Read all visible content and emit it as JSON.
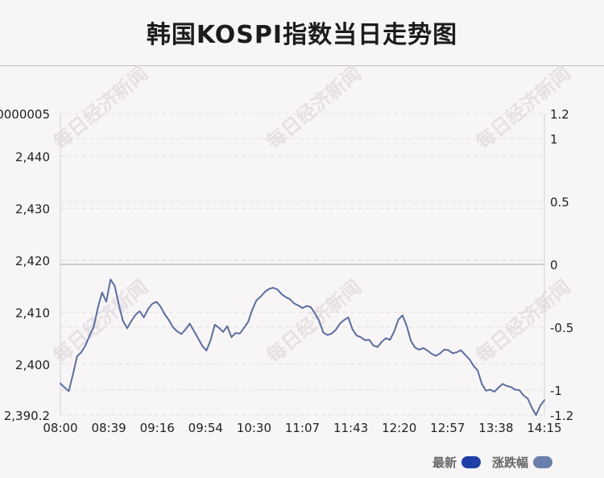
{
  "title": "韩国KOSPI指数当日走势图",
  "watermark": "每日经济新闻",
  "colors": {
    "line": "#5a6e9e",
    "legend_latest": "#1f3fa7",
    "legend_change": "#6a7eab",
    "grid": "#e2dde0",
    "zero_line": "#bfbfbf",
    "watermark": "#e6e0e3"
  },
  "legend": {
    "latest": "最新",
    "change": "涨跌幅"
  },
  "chart_data": {
    "type": "line",
    "x_ticks": [
      "08:00",
      "08:39",
      "09:16",
      "09:54",
      "10:30",
      "11:07",
      "11:43",
      "12:20",
      "12:57",
      "13:38",
      "14:15"
    ],
    "y_left": {
      "ticks": [
        {
          "value": 2390.2,
          "label": "2,390.2"
        },
        {
          "value": 2400,
          "label": "2,400"
        },
        {
          "value": 2410,
          "label": "2,410"
        },
        {
          "value": 2420,
          "label": "2,420"
        },
        {
          "value": 2430,
          "label": "2,430"
        },
        {
          "value": 2440,
          "label": "2,440"
        }
      ],
      "top_label": "0000005",
      "ylim": [
        2390.2,
        2448.2
      ]
    },
    "y_right": {
      "ticks": [
        {
          "value": 1.2,
          "label": "1.2"
        },
        {
          "value": 1,
          "label": "1"
        },
        {
          "value": 0.5,
          "label": "0.5"
        },
        {
          "value": 0,
          "label": "0"
        },
        {
          "value": -0.5,
          "label": "-0.5"
        },
        {
          "value": -1,
          "label": "-1"
        },
        {
          "value": -1.2,
          "label": "-1.2"
        }
      ],
      "ylim": [
        -1.2,
        1.2
      ]
    },
    "previous_close": 2419.7,
    "series": [
      {
        "key": "latest",
        "x_range": [
          0,
          10
        ],
        "values": [
          2396.3,
          2395.5,
          2394.8,
          2398.0,
          2401.5,
          2402.3,
          2403.6,
          2405.5,
          2407.2,
          2410.9,
          2413.8,
          2412.0,
          2416.3,
          2415.1,
          2411.5,
          2408.3,
          2406.9,
          2408.3,
          2409.5,
          2410.2,
          2409.0,
          2410.6,
          2411.6,
          2412.0,
          2411.1,
          2409.6,
          2408.5,
          2407.1,
          2406.3,
          2405.8,
          2406.7,
          2407.8,
          2406.4,
          2405.0,
          2403.5,
          2402.6,
          2404.6,
          2407.6,
          2407.0,
          2406.2,
          2407.3,
          2405.2,
          2406.0,
          2405.9,
          2407.0,
          2408.1,
          2410.5,
          2412.3,
          2413.0,
          2413.9,
          2414.5,
          2414.7,
          2414.4,
          2413.5,
          2412.9,
          2412.5,
          2411.7,
          2411.3,
          2410.8,
          2411.2,
          2411.0,
          2409.8,
          2408.4,
          2406.1,
          2405.6,
          2405.9,
          2406.6,
          2407.8,
          2408.5,
          2409.0,
          2406.7,
          2405.5,
          2405.2,
          2404.6,
          2404.7,
          2403.6,
          2403.3,
          2404.3,
          2405.0,
          2404.7,
          2406.3,
          2408.6,
          2409.4,
          2407.4,
          2404.5,
          2403.2,
          2402.8,
          2403.1,
          2402.6,
          2402.0,
          2401.6,
          2402.1,
          2402.8,
          2402.7,
          2402.1,
          2402.3,
          2402.7,
          2401.8,
          2401.0,
          2399.7,
          2398.8,
          2396.2,
          2394.9,
          2395.1,
          2394.7,
          2395.5,
          2396.2,
          2395.8,
          2395.6,
          2395.1,
          2395.0,
          2394.0,
          2393.4,
          2391.6,
          2390.2,
          2392.0,
          2393.1
        ]
      }
    ],
    "grid": true,
    "legend_position": "bottom-right"
  }
}
